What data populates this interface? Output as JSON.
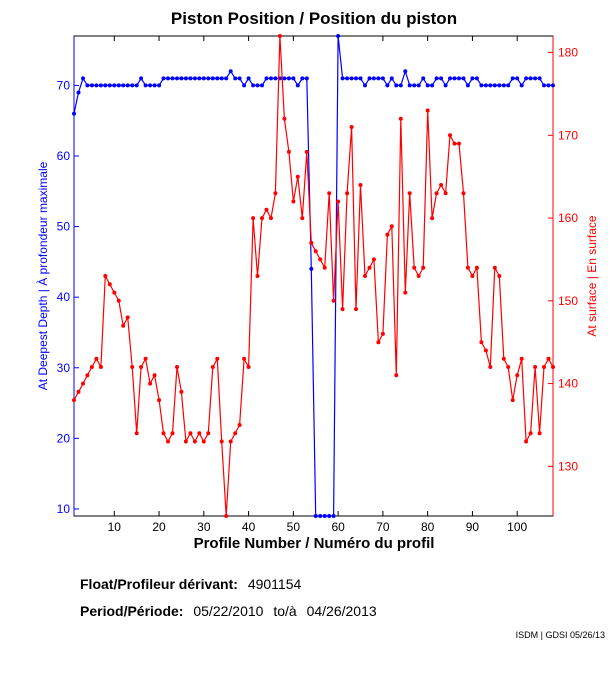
{
  "chart_data": {
    "type": "line",
    "title": "Piston Position / Position du piston",
    "xlabel": "Profile Number / Numéro du profil",
    "ylabel_left": "At Deepest Depth | À profondeur maximale",
    "ylabel_right": "At surface | En surface",
    "xlim": [
      1,
      108
    ],
    "ylim_left": [
      9,
      77
    ],
    "ylim_right": [
      124,
      182
    ],
    "xticks": [
      10,
      20,
      30,
      40,
      50,
      60,
      70,
      80,
      90,
      100
    ],
    "yticks_left": [
      10,
      20,
      30,
      40,
      50,
      60,
      70
    ],
    "yticks_right": [
      130,
      140,
      150,
      160,
      170,
      180
    ],
    "grid": false,
    "series": [
      {
        "axis": "left",
        "color": "#0000ff",
        "x": [
          1,
          2,
          3,
          4,
          5,
          6,
          7,
          8,
          9,
          10,
          11,
          12,
          13,
          14,
          15,
          16,
          17,
          18,
          19,
          20,
          21,
          22,
          23,
          24,
          25,
          26,
          27,
          28,
          29,
          30,
          31,
          32,
          33,
          34,
          35,
          36,
          37,
          38,
          39,
          40,
          41,
          42,
          43,
          44,
          45,
          46,
          47,
          48,
          49,
          50,
          51,
          52,
          53,
          54,
          55,
          56,
          57,
          58,
          59,
          60,
          61,
          62,
          63,
          64,
          65,
          66,
          67,
          68,
          69,
          70,
          71,
          72,
          73,
          74,
          75,
          76,
          77,
          78,
          79,
          80,
          81,
          82,
          83,
          84,
          85,
          86,
          87,
          88,
          89,
          90,
          91,
          92,
          93,
          94,
          95,
          96,
          97,
          98,
          99,
          100,
          101,
          102,
          103,
          104,
          105,
          106,
          107,
          108
        ],
        "values": [
          66,
          69,
          71,
          70,
          70,
          70,
          70,
          70,
          70,
          70,
          70,
          70,
          70,
          70,
          70,
          71,
          70,
          70,
          70,
          70,
          71,
          71,
          71,
          71,
          71,
          71,
          71,
          71,
          71,
          71,
          71,
          71,
          71,
          71,
          71,
          72,
          71,
          71,
          70,
          71,
          70,
          70,
          70,
          71,
          71,
          71,
          71,
          71,
          71,
          71,
          70,
          71,
          71,
          44,
          9,
          9,
          9,
          9,
          9,
          77,
          71,
          71,
          71,
          71,
          71,
          70,
          71,
          71,
          71,
          71,
          70,
          71,
          70,
          70,
          72,
          70,
          70,
          70,
          71,
          70,
          70,
          71,
          71,
          70,
          71,
          71,
          71,
          71,
          70,
          71,
          71,
          70,
          70,
          70,
          70,
          70,
          70,
          70,
          71,
          71,
          70,
          71,
          71,
          71,
          71,
          70,
          70,
          70
        ]
      },
      {
        "axis": "right",
        "color": "#ff0000",
        "x": [
          1,
          2,
          3,
          4,
          5,
          6,
          7,
          8,
          9,
          10,
          11,
          12,
          13,
          14,
          15,
          16,
          17,
          18,
          19,
          20,
          21,
          22,
          23,
          24,
          25,
          26,
          27,
          28,
          29,
          30,
          31,
          32,
          33,
          34,
          35,
          36,
          37,
          38,
          39,
          40,
          41,
          42,
          43,
          44,
          45,
          46,
          47,
          48,
          49,
          50,
          51,
          52,
          53,
          54,
          55,
          56,
          57,
          58,
          59,
          60,
          61,
          62,
          63,
          64,
          65,
          66,
          67,
          68,
          69,
          70,
          71,
          72,
          73,
          74,
          75,
          76,
          77,
          78,
          79,
          80,
          81,
          82,
          83,
          84,
          85,
          86,
          87,
          88,
          89,
          90,
          91,
          92,
          93,
          94,
          95,
          96,
          97,
          98,
          99,
          100,
          101,
          102,
          103,
          104,
          105,
          106,
          107,
          108
        ],
        "values": [
          138,
          139,
          140,
          141,
          142,
          143,
          142,
          153,
          152,
          151,
          150,
          147,
          148,
          142,
          134,
          142,
          143,
          140,
          141,
          138,
          134,
          133,
          134,
          142,
          139,
          133,
          134,
          133,
          134,
          133,
          134,
          142,
          143,
          133,
          124,
          133,
          134,
          135,
          143,
          142,
          160,
          153,
          160,
          161,
          160,
          163,
          182,
          172,
          168,
          162,
          165,
          160,
          168,
          157,
          156,
          155,
          154,
          163,
          150,
          162,
          149,
          163,
          171,
          149,
          164,
          153,
          154,
          155,
          145,
          146,
          158,
          159,
          141,
          172,
          151,
          163,
          154,
          153,
          154,
          173,
          160,
          163,
          164,
          163,
          170,
          169,
          169,
          163,
          154,
          153,
          154,
          145,
          144,
          142,
          154,
          153,
          143,
          142,
          138,
          141,
          143,
          133,
          134,
          142,
          134,
          142,
          143,
          142
        ]
      }
    ]
  },
  "info": {
    "float_label": "Float/Profileur dérivant:",
    "float_value": "4901154",
    "period_label": "Period/Période:",
    "period_start": "05/22/2010",
    "period_sep": "to/à",
    "period_end": "04/26/2013"
  },
  "footer": "ISDM | GDSI 05/26/13"
}
